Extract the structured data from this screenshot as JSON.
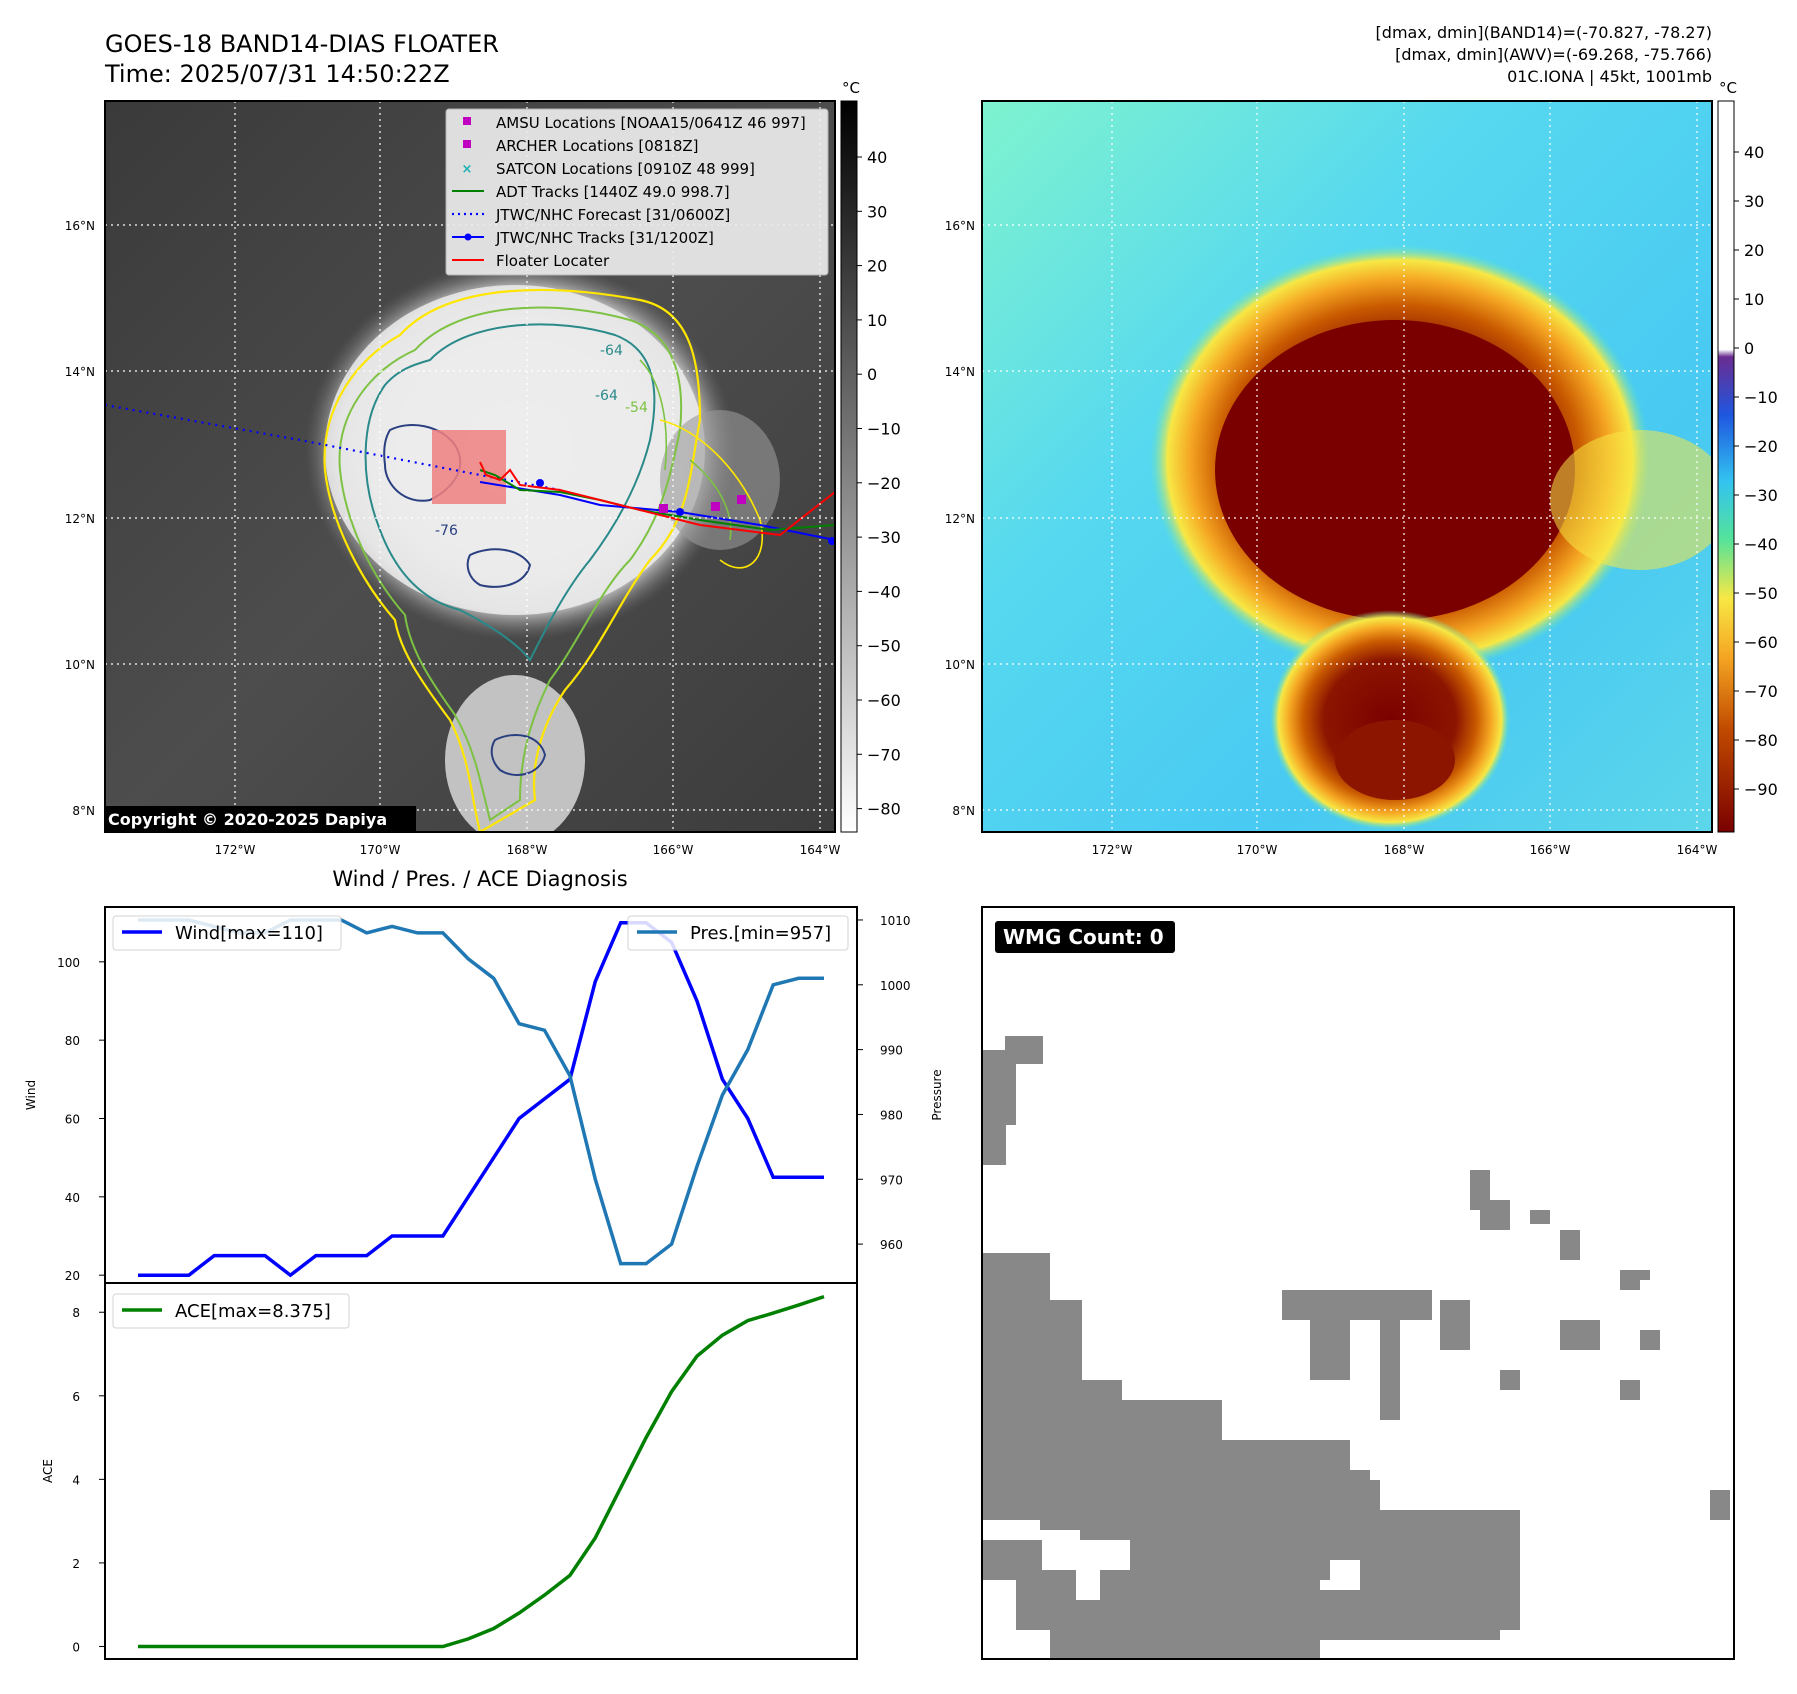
{
  "header": {
    "title_line1": "GOES-18 BAND14-DIAS FLOATER",
    "title_line2": "Time: 2025/07/31 14:50:22Z",
    "info_line1": "[dmax, dmin](BAND14)=(-70.827, -78.27)",
    "info_line2": "[dmax, dmin](AWV)=(-69.268, -75.766)",
    "info_line3": "01C.IONA | 45kt, 1001mb"
  },
  "map_left": {
    "lat_labels": [
      "16°N",
      "14°N",
      "12°N",
      "10°N",
      "8°N"
    ],
    "lon_labels": [
      "172°W",
      "170°W",
      "168°W",
      "166°W",
      "164°W"
    ],
    "copyright": "Copyright © 2020-2025 Dapiya",
    "colorbar_unit": "°C",
    "colorbar_ticks": [
      "40",
      "30",
      "20",
      "10",
      "0",
      "−10",
      "−20",
      "−30",
      "−40",
      "−50",
      "−60",
      "−70",
      "−80"
    ],
    "contour_labels": [
      "-64",
      "-64",
      "-54",
      "-76"
    ],
    "legend": [
      {
        "label": "AMSU Locations [NOAA15/0641Z 46 997]",
        "marker": "square",
        "color": "#c000c0"
      },
      {
        "label": "ARCHER Locations [0818Z]",
        "marker": "square",
        "color": "#c000c0"
      },
      {
        "label": "SATCON Locations [0910Z 48 999]",
        "marker": "x",
        "color": "#20b0b0"
      },
      {
        "label": "ADT Tracks [1440Z 49.0 998.7]",
        "marker": "line",
        "color": "#008000"
      },
      {
        "label": "JTWC/NHC Forecast [31/0600Z]",
        "marker": "dotted",
        "color": "#0000ff"
      },
      {
        "label": "JTWC/NHC Tracks [31/1200Z]",
        "marker": "line-dot",
        "color": "#0000ff"
      },
      {
        "label": "Floater Locater",
        "marker": "line",
        "color": "#ff0000"
      }
    ]
  },
  "map_right": {
    "lat_labels": [
      "16°N",
      "14°N",
      "12°N",
      "10°N",
      "8°N"
    ],
    "lon_labels": [
      "172°W",
      "170°W",
      "168°W",
      "166°W",
      "164°W"
    ],
    "colorbar_unit": "°C",
    "colorbar_ticks": [
      "40",
      "30",
      "20",
      "10",
      "0",
      "−10",
      "−20",
      "−30",
      "−40",
      "−50",
      "−60",
      "−70",
      "−80",
      "−90"
    ]
  },
  "chart_data": [
    {
      "type": "line",
      "title": "Wind / Pres. / ACE Diagnosis",
      "ylabel": "Wind",
      "ylabel_right": "Pressure",
      "ylim": [
        18,
        114
      ],
      "ylim_right": [
        954,
        1012
      ],
      "yticks": [
        20,
        40,
        60,
        80,
        100
      ],
      "yticks_right": [
        960,
        970,
        980,
        990,
        1000,
        1010
      ],
      "series": [
        {
          "name": "Wind[max=110]",
          "axis": "left",
          "color": "#0000ff",
          "values": [
            20,
            20,
            20,
            25,
            25,
            25,
            20,
            25,
            25,
            25,
            30,
            30,
            30,
            40,
            50,
            60,
            65,
            70,
            95,
            110,
            110,
            105,
            90,
            70,
            60,
            45,
            45,
            45
          ]
        },
        {
          "name": "Pres.[min=957]",
          "axis": "right",
          "color": "#1f77b4",
          "values": [
            1010,
            1010,
            1010,
            1009,
            1008,
            1008,
            1010,
            1010,
            1010,
            1008,
            1009,
            1008,
            1008,
            1004,
            1001,
            994,
            993,
            986,
            970,
            957,
            957,
            960,
            972,
            983,
            990,
            1000,
            1001,
            1001
          ]
        }
      ]
    },
    {
      "type": "line",
      "ylabel": "ACE",
      "ylim": [
        -0.3,
        8.7
      ],
      "yticks": [
        0,
        2,
        4,
        6,
        8
      ],
      "series": [
        {
          "name": "ACE[max=8.375]",
          "color": "#008000",
          "values": [
            0,
            0,
            0,
            0,
            0,
            0,
            0,
            0,
            0,
            0,
            0,
            0,
            0,
            0.18,
            0.43,
            0.8,
            1.23,
            1.7,
            2.6,
            3.8,
            5.0,
            6.1,
            6.95,
            7.45,
            7.8,
            7.98,
            8.17,
            8.375
          ]
        }
      ]
    },
    {
      "type": "heatmap",
      "label": "WMG Count: 0"
    }
  ]
}
